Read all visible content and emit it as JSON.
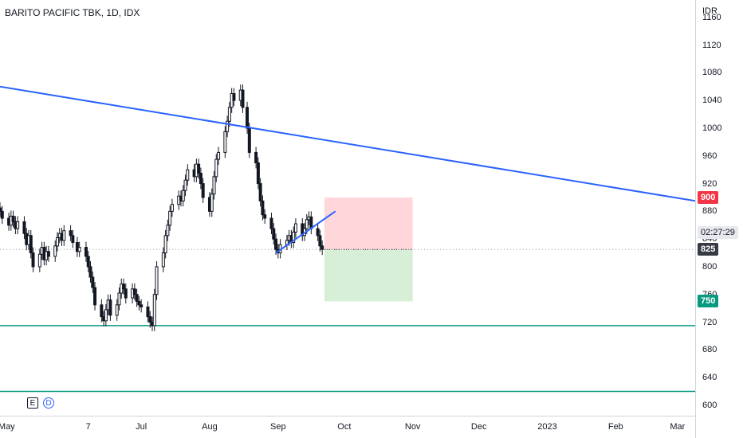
{
  "title": "BARITO PACIFIC TBK, 1D, IDX",
  "currency": "IDR",
  "icons": {
    "e_label": "E",
    "d_label": "D"
  },
  "colors": {
    "up": "#131722",
    "down": "#131722",
    "trendline": "#2962ff",
    "support": "#089981",
    "stop_zone": "#ffcdd2",
    "target_zone": "#cdebcd",
    "stop_badge": "#f23645",
    "target_badge": "#089981",
    "last_badge": "#363a45"
  },
  "chart_data": {
    "type": "candlestick",
    "ylim": [
      585,
      1185
    ],
    "y_ticks": [
      "1160",
      "1120",
      "1080",
      "1040",
      "1000",
      "960",
      "920",
      "880",
      "840",
      "800",
      "760",
      "720",
      "680",
      "640",
      "600"
    ],
    "x_tick_labels": [
      "May",
      "7",
      "Jul",
      "Aug",
      "Sep",
      "Oct",
      "Nov",
      "Dec",
      "2023",
      "Feb",
      "Mar"
    ],
    "x_tick_dates": [
      "2022-05-01",
      "2022-06-07",
      "2022-07-01",
      "2022-08-01",
      "2022-09-01",
      "2022-10-01",
      "2022-11-01",
      "2022-12-01",
      "2023-01-01",
      "2023-02-01",
      "2023-03-01"
    ],
    "xlim": [
      "2022-04-28",
      "2023-03-09"
    ],
    "price_badges": {
      "stop": "900",
      "last": "825",
      "target": "750",
      "countdown": "02:27:29"
    },
    "last_price": 825,
    "ohlc_closes": [
      [
        "2022-04-28",
        880
      ],
      [
        "2022-04-29",
        870
      ],
      [
        "2022-05-02",
        860
      ],
      [
        "2022-05-03",
        873
      ],
      [
        "2022-05-04",
        865
      ],
      [
        "2022-05-05",
        855
      ],
      [
        "2022-05-06",
        865
      ],
      [
        "2022-05-09",
        848
      ],
      [
        "2022-05-10",
        832
      ],
      [
        "2022-05-11",
        845
      ],
      [
        "2022-05-12",
        820
      ],
      [
        "2022-05-13",
        800
      ],
      [
        "2022-05-16",
        818
      ],
      [
        "2022-05-17",
        828
      ],
      [
        "2022-05-18",
        810
      ],
      [
        "2022-05-19",
        822
      ],
      [
        "2022-05-20",
        815
      ],
      [
        "2022-05-23",
        830
      ],
      [
        "2022-05-24",
        842
      ],
      [
        "2022-05-25",
        848
      ],
      [
        "2022-05-26",
        838
      ],
      [
        "2022-05-27",
        852
      ],
      [
        "2022-05-30",
        845
      ],
      [
        "2022-05-31",
        835
      ],
      [
        "2022-06-02",
        822
      ],
      [
        "2022-06-03",
        828
      ],
      [
        "2022-06-06",
        815
      ],
      [
        "2022-06-07",
        800
      ],
      [
        "2022-06-08",
        785
      ],
      [
        "2022-06-09",
        770
      ],
      [
        "2022-06-10",
        745
      ],
      [
        "2022-06-13",
        728
      ],
      [
        "2022-06-14",
        722
      ],
      [
        "2022-06-15",
        738
      ],
      [
        "2022-06-16",
        752
      ],
      [
        "2022-06-17",
        730
      ],
      [
        "2022-06-20",
        745
      ],
      [
        "2022-06-21",
        762
      ],
      [
        "2022-06-22",
        775
      ],
      [
        "2022-06-23",
        768
      ],
      [
        "2022-06-24",
        755
      ],
      [
        "2022-06-27",
        768
      ],
      [
        "2022-06-28",
        760
      ],
      [
        "2022-06-29",
        750
      ],
      [
        "2022-06-30",
        745
      ],
      [
        "2022-07-01",
        742
      ],
      [
        "2022-07-04",
        728
      ],
      [
        "2022-07-05",
        720
      ],
      [
        "2022-07-06",
        715
      ],
      [
        "2022-07-07",
        760
      ],
      [
        "2022-07-08",
        800
      ],
      [
        "2022-07-11",
        820
      ],
      [
        "2022-07-12",
        845
      ],
      [
        "2022-07-13",
        860
      ],
      [
        "2022-07-14",
        880
      ],
      [
        "2022-07-15",
        890
      ],
      [
        "2022-07-18",
        902
      ],
      [
        "2022-07-19",
        895
      ],
      [
        "2022-07-20",
        910
      ],
      [
        "2022-07-21",
        925
      ],
      [
        "2022-07-22",
        940
      ],
      [
        "2022-07-25",
        930
      ],
      [
        "2022-07-26",
        948
      ],
      [
        "2022-07-27",
        935
      ],
      [
        "2022-07-28",
        920
      ],
      [
        "2022-07-29",
        900
      ],
      [
        "2022-08-01",
        880
      ],
      [
        "2022-08-02",
        905
      ],
      [
        "2022-08-03",
        930
      ],
      [
        "2022-08-04",
        955
      ],
      [
        "2022-08-05",
        965
      ],
      [
        "2022-08-08",
        995
      ],
      [
        "2022-08-09",
        1010
      ],
      [
        "2022-08-10",
        1030
      ],
      [
        "2022-08-11",
        1050
      ],
      [
        "2022-08-12",
        1040
      ],
      [
        "2022-08-15",
        1055
      ],
      [
        "2022-08-16",
        1030
      ],
      [
        "2022-08-18",
        1000
      ],
      [
        "2022-08-19",
        965
      ],
      [
        "2022-08-22",
        950
      ],
      [
        "2022-08-23",
        920
      ],
      [
        "2022-08-24",
        895
      ],
      [
        "2022-08-25",
        875
      ],
      [
        "2022-08-26",
        870
      ],
      [
        "2022-08-29",
        855
      ],
      [
        "2022-08-30",
        840
      ],
      [
        "2022-08-31",
        825
      ],
      [
        "2022-09-01",
        820
      ],
      [
        "2022-09-02",
        832
      ],
      [
        "2022-09-05",
        838
      ],
      [
        "2022-09-06",
        845
      ],
      [
        "2022-09-07",
        835
      ],
      [
        "2022-09-08",
        850
      ],
      [
        "2022-09-09",
        862
      ],
      [
        "2022-09-12",
        845
      ],
      [
        "2022-09-13",
        855
      ],
      [
        "2022-09-14",
        868
      ],
      [
        "2022-09-15",
        872
      ],
      [
        "2022-09-16",
        855
      ],
      [
        "2022-09-19",
        845
      ],
      [
        "2022-09-20",
        830
      ],
      [
        "2022-09-21",
        825
      ]
    ],
    "annotations": {
      "long_trendline": {
        "from": [
          "2022-04-28",
          1060
        ],
        "to": [
          "2023-03-09",
          895
        ]
      },
      "short_trendline": {
        "from": [
          "2022-08-31",
          820
        ],
        "to": [
          "2022-09-27",
          880
        ]
      },
      "support_lines": [
        715,
        620
      ],
      "position": {
        "from": "2022-09-22",
        "to": "2022-11-01",
        "entry": 825,
        "stop": 900,
        "target": 750
      }
    }
  }
}
